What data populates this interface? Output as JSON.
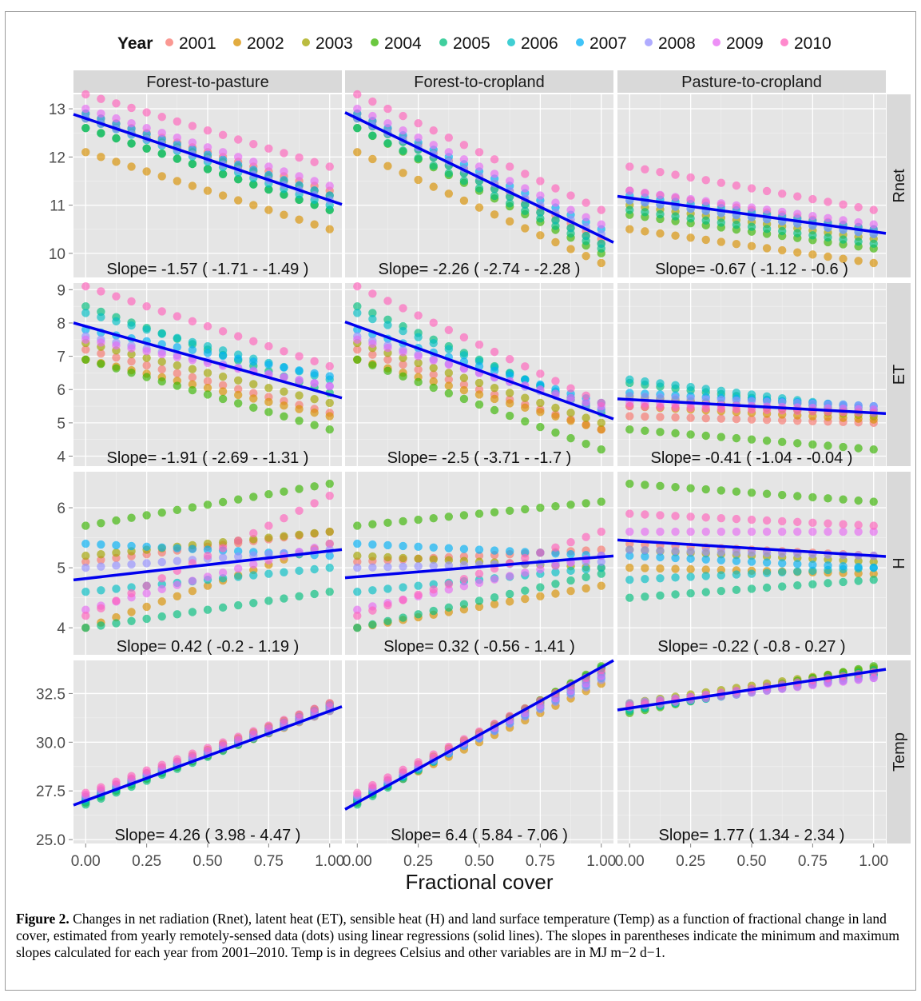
{
  "figure": {
    "legend_title": "Year",
    "years": [
      "2001",
      "2002",
      "2003",
      "2004",
      "2005",
      "2006",
      "2007",
      "2008",
      "2009",
      "2010"
    ],
    "year_colors": [
      "#F8766D",
      "#D89000",
      "#A3A500",
      "#39B600",
      "#00BF7D",
      "#00BFC4",
      "#00B0F6",
      "#9590FF",
      "#E76BF3",
      "#FF62BC"
    ],
    "columns": [
      "Forest-to-pasture",
      "Forest-to-cropland",
      "Pasture-to-cropland"
    ],
    "rows": [
      "Rnet",
      "ET",
      "H",
      "Temp"
    ],
    "xlabel": "Fractional cover",
    "regression_color": "#0000EE",
    "panel_bg": "#E5E5E5",
    "grid_color": "#FFFFFF"
  },
  "caption": {
    "label": "Figure 2.",
    "text": "Changes in net radiation (Rnet), latent heat (ET), sensible heat (H) and land surface temperature (Temp) as a function of fractional change in land cover, estimated from yearly remotely-sensed data (dots) using linear regressions (solid lines). The slopes in parentheses indicate the minimum and maximum slopes calculated for each year from 2001–2010. Temp is in degrees Celsius and other variables are in MJ m−2 d−1."
  },
  "chart_data": {
    "type": "scatter",
    "facet_columns": [
      "Forest-to-pasture",
      "Forest-to-cropland",
      "Pasture-to-cropland"
    ],
    "facet_rows": [
      "Rnet",
      "ET",
      "H",
      "Temp"
    ],
    "x": [
      0,
      0.0625,
      0.125,
      0.1875,
      0.25,
      0.3125,
      0.375,
      0.4375,
      0.5,
      0.5625,
      0.625,
      0.6875,
      0.75,
      0.8125,
      0.875,
      0.9375,
      1.0
    ],
    "xticks": [
      "0.00",
      "0.25",
      "0.50",
      "0.75",
      "1.00"
    ],
    "xlim": [
      -0.05,
      1.05
    ],
    "xlabel": "Fractional cover",
    "series_names": [
      "2001",
      "2002",
      "2003",
      "2004",
      "2005",
      "2006",
      "2007",
      "2008",
      "2009",
      "2010"
    ],
    "rows": [
      {
        "name": "Rnet",
        "ylim": [
          9.5,
          13.3
        ],
        "yticks": [
          "10",
          "11",
          "12",
          "13"
        ],
        "ytick_values": [
          10,
          11,
          12,
          13
        ],
        "panels": [
          {
            "start": [
              12.9,
              12.1,
              12.8,
              12.6,
              12.6,
              12.8,
              12.9,
              12.8,
              13.0,
              13.3
            ],
            "end": [
              11.3,
              10.5,
              11.2,
              10.9,
              10.9,
              11.0,
              11.2,
              11.1,
              11.4,
              11.8
            ],
            "fit": [
              12.8,
              11.1
            ],
            "slope_text": "Slope=  -1.57  ( -1.71  -  -1.49 )"
          },
          {
            "start": [
              12.9,
              12.1,
              12.8,
              12.6,
              12.6,
              12.8,
              12.9,
              12.8,
              13.0,
              13.3
            ],
            "end": [
              10.3,
              9.8,
              10.2,
              10.0,
              10.1,
              10.2,
              10.5,
              10.4,
              10.6,
              10.9
            ],
            "fit": [
              12.8,
              10.35
            ],
            "slope_text": "Slope=  -2.26  ( -2.74  -  -2.28 )"
          },
          {
            "start": [
              11.3,
              10.5,
              11.0,
              10.8,
              10.9,
              11.1,
              11.2,
              11.1,
              11.3,
              11.8
            ],
            "end": [
              10.5,
              9.8,
              10.3,
              10.1,
              10.2,
              10.4,
              10.5,
              10.4,
              10.6,
              10.9
            ],
            "fit": [
              11.15,
              10.45
            ],
            "slope_text": "Slope=  -0.67  ( -1.12  -  -0.6 )"
          }
        ]
      },
      {
        "name": "ET",
        "ylim": [
          3.7,
          9.2
        ],
        "yticks": [
          "4",
          "5",
          "6",
          "7",
          "8",
          "9"
        ],
        "ytick_values": [
          4,
          5,
          6,
          7,
          8,
          9
        ],
        "panels": [
          {
            "start": [
              7.2,
              6.9,
              7.4,
              6.9,
              8.5,
              8.3,
              7.8,
              7.6,
              7.5,
              9.1
            ],
            "end": [
              5.3,
              5.2,
              5.6,
              4.8,
              5.9,
              6.3,
              6.4,
              6.1,
              6.1,
              6.7
            ],
            "fit": [
              7.9,
              5.85
            ],
            "slope_text": "Slope=  -1.91  ( -2.69  -  -1.31 )"
          },
          {
            "start": [
              7.2,
              6.9,
              7.4,
              6.9,
              8.5,
              8.3,
              7.8,
              7.6,
              7.5,
              9.1
            ],
            "end": [
              4.8,
              4.8,
              5.0,
              4.2,
              5.3,
              5.4,
              5.6,
              5.4,
              5.5,
              5.6
            ],
            "fit": [
              7.9,
              5.25
            ],
            "slope_text": "Slope=  -2.5  ( -3.71  -  -1.7 )"
          },
          {
            "start": [
              5.2,
              5.5,
              5.8,
              4.8,
              6.2,
              6.3,
              5.9,
              5.8,
              5.6,
              5.5
            ],
            "end": [
              5.0,
              5.1,
              5.2,
              4.2,
              5.3,
              5.4,
              5.5,
              5.5,
              5.4,
              5.3
            ],
            "fit": [
              5.7,
              5.3
            ],
            "slope_text": "Slope=  -0.41  ( -1.04  -  -0.04 )"
          }
        ]
      },
      {
        "name": "H",
        "ylim": [
          3.55,
          6.6
        ],
        "yticks": [
          "4",
          "5",
          "6"
        ],
        "ytick_values": [
          4,
          5,
          6
        ],
        "panels": [
          {
            "start": [
              5.1,
              4.0,
              5.2,
              5.7,
              4.0,
              4.6,
              5.4,
              5.0,
              4.3,
              4.2
            ],
            "end": [
              5.6,
              5.4,
              5.6,
              6.4,
              4.6,
              5.0,
              5.2,
              5.3,
              5.4,
              6.2
            ],
            "fit": [
              4.82,
              5.28
            ],
            "slope_text": "Slope=  0.42  ( -0.2  -  1.19 )"
          },
          {
            "start": [
              5.1,
              4.0,
              5.2,
              5.7,
              4.0,
              4.6,
              5.4,
              5.0,
              4.3,
              4.2
            ],
            "end": [
              5.3,
              4.7,
              5.0,
              6.1,
              4.9,
              5.0,
              5.2,
              5.1,
              5.2,
              5.6
            ],
            "fit": [
              4.85,
              5.18
            ],
            "slope_text": "Slope=  0.32  ( -0.56  -  1.41 )"
          },
          {
            "start": [
              5.4,
              5.0,
              5.3,
              6.4,
              4.5,
              4.8,
              5.2,
              5.3,
              5.6,
              5.9
            ],
            "end": [
              5.2,
              4.9,
              5.1,
              6.1,
              4.8,
              5.0,
              5.0,
              5.2,
              5.6,
              5.7
            ],
            "fit": [
              5.45,
              5.2
            ],
            "slope_text": "Slope=  -0.22  ( -0.8  -  0.27 )"
          }
        ]
      },
      {
        "name": "Temp",
        "ylim": [
          24.8,
          34.2
        ],
        "yticks": [
          "25.0",
          "27.5",
          "30.0",
          "32.5"
        ],
        "ytick_values": [
          25,
          27.5,
          30,
          32.5
        ],
        "panels": [
          {
            "start": [
              27.1,
              27.0,
              27.2,
              26.9,
              26.8,
              27.0,
              27.1,
              27.2,
              27.3,
              27.4
            ],
            "end": [
              31.9,
              31.6,
              32.0,
              31.8,
              31.7,
              31.8,
              31.9,
              31.6,
              31.8,
              32.0
            ],
            "fit": [
              27.0,
              31.6
            ],
            "slope_text": "Slope=  4.26  ( 3.98  -  4.47 )"
          },
          {
            "start": [
              27.1,
              27.0,
              27.2,
              26.9,
              26.8,
              27.0,
              27.1,
              27.2,
              27.3,
              27.4
            ],
            "end": [
              33.6,
              33.0,
              33.8,
              33.9,
              33.8,
              33.5,
              33.3,
              33.2,
              33.4,
              33.7
            ],
            "fit": [
              26.9,
              33.85
            ],
            "slope_text": "Slope=  6.4  ( 5.84  -  7.06 )"
          },
          {
            "start": [
              31.8,
              31.9,
              32.0,
              31.5,
              31.6,
              31.7,
              31.9,
              32.0,
              31.8,
              31.9
            ],
            "end": [
              33.6,
              33.5,
              33.8,
              33.9,
              33.7,
              33.4,
              33.5,
              33.3,
              33.3,
              33.6
            ],
            "fit": [
              31.75,
              33.65
            ],
            "slope_text": "Slope=  1.77  ( 1.34  -  2.34 )"
          }
        ]
      }
    ]
  }
}
